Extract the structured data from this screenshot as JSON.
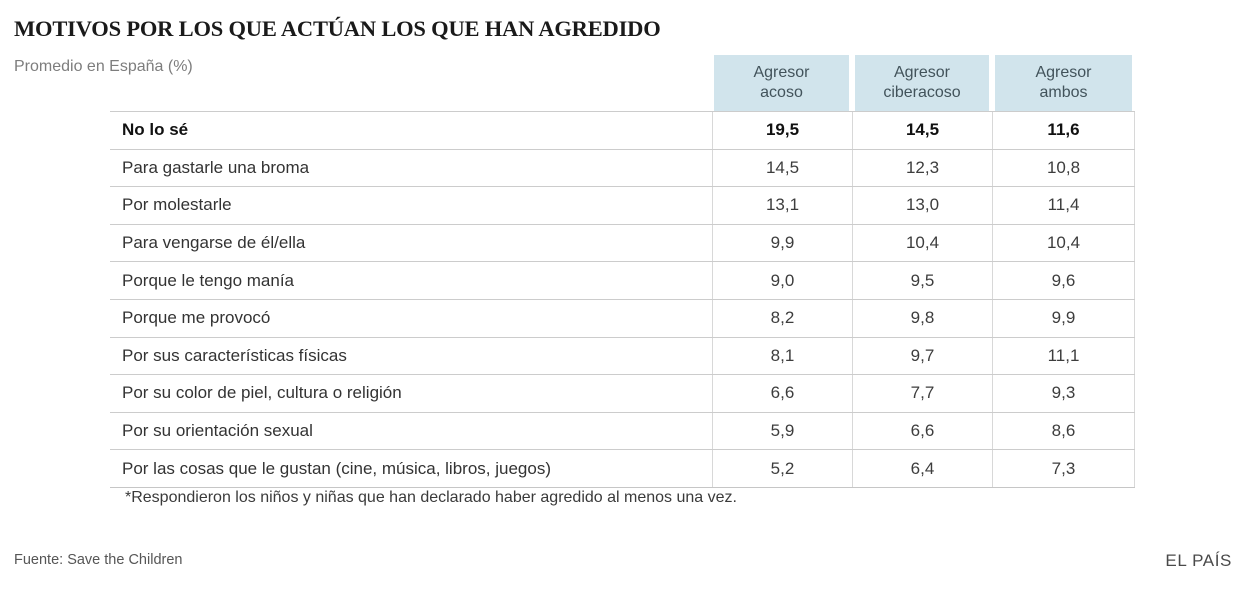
{
  "page": {
    "title": "MOTIVOS POR LOS QUE ACTÚAN LOS QUE HAN AGREDIDO",
    "subtitle": "Promedio en España (%)",
    "footnote": "*Respondieron los niños y niñas que han declarado haber agredido al menos una vez.",
    "source": "Fuente: Save the Children",
    "brand": "EL PAÍS"
  },
  "colors": {
    "header_bg": "#d1e4ec",
    "grid_line": "#cccccc",
    "title_text": "#1a1a1a",
    "subtitle_text": "#7d7d7d",
    "header_text": "#42535b",
    "cell_text": "#3d3d3d"
  },
  "chart_data": {
    "type": "table",
    "title": "MOTIVOS POR LOS QUE ACTÚAN LOS QUE HAN AGREDIDO",
    "subtitle": "Promedio en España (%)",
    "unit": "%",
    "columns": [
      "Agresor acoso",
      "Agresor ciberacoso",
      "Agresor ambos"
    ],
    "columns_wrapped": [
      "Agresor\nacoso",
      "Agresor\nciberacoso",
      "Agresor\nambos"
    ],
    "rows": [
      {
        "label": "No lo sé",
        "values": [
          "19,5",
          "14,5",
          "11,6"
        ],
        "bold": true
      },
      {
        "label": "Para gastarle una broma",
        "values": [
          "14,5",
          "12,3",
          "10,8"
        ],
        "bold": false
      },
      {
        "label": "Por molestarle",
        "values": [
          "13,1",
          "13,0",
          "11,4"
        ],
        "bold": false
      },
      {
        "label": "Para vengarse de él/ella",
        "values": [
          "9,9",
          "10,4",
          "10,4"
        ],
        "bold": false
      },
      {
        "label": "Porque le tengo manía",
        "values": [
          "9,0",
          "9,5",
          "9,6"
        ],
        "bold": false
      },
      {
        "label": "Porque me provocó",
        "values": [
          "8,2",
          "9,8",
          "9,9"
        ],
        "bold": false
      },
      {
        "label": "Por sus características físicas",
        "values": [
          "8,1",
          "9,7",
          "11,1"
        ],
        "bold": false
      },
      {
        "label": "Por su color de piel, cultura o religión",
        "values": [
          "6,6",
          "7,7",
          "9,3"
        ],
        "bold": false
      },
      {
        "label": "Por su orientación sexual",
        "values": [
          "5,9",
          "6,6",
          "8,6"
        ],
        "bold": false
      },
      {
        "label": "Por las cosas que le gustan (cine, música, libros, juegos)",
        "values": [
          "5,2",
          "6,4",
          "7,3"
        ],
        "bold": false
      }
    ],
    "numeric_values": [
      [
        19.5,
        14.5,
        11.6
      ],
      [
        14.5,
        12.3,
        10.8
      ],
      [
        13.1,
        13.0,
        11.4
      ],
      [
        9.9,
        10.4,
        10.4
      ],
      [
        9.0,
        9.5,
        9.6
      ],
      [
        8.2,
        9.8,
        9.9
      ],
      [
        8.1,
        9.7,
        11.1
      ],
      [
        6.6,
        7.7,
        9.3
      ],
      [
        5.9,
        6.6,
        8.6
      ],
      [
        5.2,
        6.4,
        7.3
      ]
    ]
  }
}
